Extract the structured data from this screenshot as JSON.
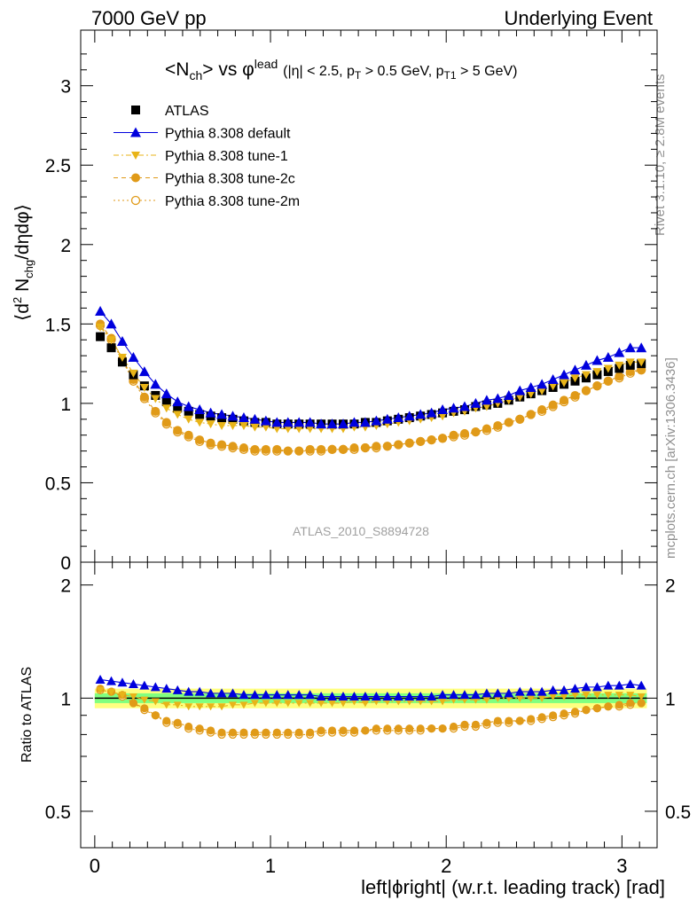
{
  "header": {
    "left": "7000 GeV pp",
    "right": "Underlying Event"
  },
  "side_labels": {
    "rivet": "Rivet 3.1.10, ≥ 2.8M events",
    "mcplots": "mcplots.cern.ch [arXiv:1306.3436]"
  },
  "colors": {
    "atlas": "#000000",
    "default": "#0000dd",
    "tune1": "#e8b418",
    "tune2c": "#e09a18",
    "tune2m": "#e09a18",
    "band_yellow": "#ffff80",
    "band_green": "#80ff80"
  },
  "chart_data": {
    "type": "scatter",
    "title_main": "<N",
    "title_sub": "ch",
    "title_vs": "> vs φ",
    "title_sup": "lead",
    "title_cuts": "(|η| < 2.5, p",
    "title_T": "T",
    "title_cuts2": " > 0.5 GeV, p",
    "title_T1": "T1",
    "title_cuts3": " > 5 GeV)",
    "ylabel": "⟨d² N_chg/dηdφ⟩",
    "ylabel_parts": {
      "pre": "⟨d",
      "sup2": "2",
      "mid": " N",
      "sub": "chg",
      "post": "/dηdφ⟩"
    },
    "ratio_ylabel": "Ratio to ATLAS",
    "xlabel": "left|ϕright| (w.r.t. leading track) [rad]",
    "analysis_id": "ATLAS_2010_S8894728",
    "xlim": [
      -0.08,
      3.2
    ],
    "ylim": [
      0,
      3.35
    ],
    "ratio_ylim": [
      0.4,
      2.3
    ],
    "x_ticks": [
      "0",
      "1",
      "2",
      "3"
    ],
    "y_ticks": [
      "0",
      "0.5",
      "1",
      "1.5",
      "2",
      "2.5",
      "3"
    ],
    "ratio_ticks": [
      "0.5",
      "1",
      "2"
    ],
    "legend_placement": "top-left",
    "x": [
      0.0314,
      0.0942,
      0.157,
      0.2199,
      0.2827,
      0.3456,
      0.4084,
      0.4712,
      0.5341,
      0.5969,
      0.6597,
      0.7226,
      0.7854,
      0.8482,
      0.9111,
      0.9739,
      1.0367,
      1.0996,
      1.1624,
      1.2252,
      1.2881,
      1.3509,
      1.4137,
      1.4766,
      1.5394,
      1.6022,
      1.6651,
      1.7279,
      1.7907,
      1.8536,
      1.9164,
      1.9792,
      2.0421,
      2.1049,
      2.1677,
      2.2306,
      2.2934,
      2.3562,
      2.4191,
      2.4819,
      2.5447,
      2.6076,
      2.6704,
      2.7332,
      2.7961,
      2.8589,
      2.9217,
      2.9846,
      3.0474,
      3.1102
    ],
    "series": [
      {
        "name": "ATLAS",
        "marker": "square",
        "values": [
          1.42,
          1.35,
          1.26,
          1.18,
          1.11,
          1.05,
          1.01,
          0.97,
          0.95,
          0.93,
          0.92,
          0.91,
          0.9,
          0.89,
          0.88,
          0.88,
          0.87,
          0.87,
          0.87,
          0.87,
          0.87,
          0.87,
          0.87,
          0.87,
          0.88,
          0.88,
          0.89,
          0.9,
          0.91,
          0.92,
          0.93,
          0.94,
          0.95,
          0.96,
          0.98,
          0.99,
          1.0,
          1.02,
          1.04,
          1.06,
          1.08,
          1.1,
          1.12,
          1.14,
          1.16,
          1.18,
          1.2,
          1.22,
          1.24,
          1.25
        ],
        "ratio": [
          1,
          1,
          1,
          1,
          1,
          1,
          1,
          1,
          1,
          1,
          1,
          1,
          1,
          1,
          1,
          1,
          1,
          1,
          1,
          1,
          1,
          1,
          1,
          1,
          1,
          1,
          1,
          1,
          1,
          1,
          1,
          1,
          1,
          1,
          1,
          1,
          1,
          1,
          1,
          1,
          1,
          1,
          1,
          1,
          1,
          1,
          1,
          1,
          1,
          1
        ]
      },
      {
        "name": "Pythia 8.308 default",
        "marker": "triangle-up",
        "line": "solid",
        "values": [
          1.58,
          1.5,
          1.39,
          1.29,
          1.2,
          1.12,
          1.06,
          1.01,
          0.98,
          0.96,
          0.94,
          0.93,
          0.92,
          0.91,
          0.9,
          0.89,
          0.88,
          0.88,
          0.88,
          0.88,
          0.87,
          0.87,
          0.87,
          0.88,
          0.88,
          0.89,
          0.9,
          0.91,
          0.92,
          0.93,
          0.94,
          0.96,
          0.97,
          0.98,
          1.0,
          1.02,
          1.03,
          1.05,
          1.08,
          1.1,
          1.12,
          1.15,
          1.18,
          1.21,
          1.24,
          1.27,
          1.29,
          1.32,
          1.35,
          1.35
        ],
        "ratio": [
          1.12,
          1.11,
          1.1,
          1.09,
          1.08,
          1.07,
          1.06,
          1.05,
          1.04,
          1.04,
          1.03,
          1.03,
          1.03,
          1.02,
          1.02,
          1.02,
          1.02,
          1.02,
          1.02,
          1.02,
          1.01,
          1.01,
          1.01,
          1.01,
          1.01,
          1.01,
          1.01,
          1.01,
          1.01,
          1.01,
          1.01,
          1.02,
          1.02,
          1.02,
          1.02,
          1.03,
          1.03,
          1.03,
          1.04,
          1.04,
          1.04,
          1.05,
          1.05,
          1.06,
          1.07,
          1.07,
          1.08,
          1.08,
          1.09,
          1.08
        ]
      },
      {
        "name": "Pythia 8.308 tune-1",
        "marker": "triangle-down",
        "line": "dashdot",
        "values": [
          1.48,
          1.4,
          1.29,
          1.19,
          1.1,
          1.03,
          0.97,
          0.93,
          0.9,
          0.88,
          0.87,
          0.86,
          0.86,
          0.86,
          0.85,
          0.85,
          0.84,
          0.84,
          0.84,
          0.84,
          0.84,
          0.84,
          0.84,
          0.85,
          0.85,
          0.86,
          0.87,
          0.88,
          0.89,
          0.9,
          0.91,
          0.92,
          0.94,
          0.95,
          0.97,
          0.98,
          1.0,
          1.02,
          1.04,
          1.06,
          1.08,
          1.11,
          1.13,
          1.16,
          1.18,
          1.2,
          1.22,
          1.24,
          1.26,
          1.26
        ],
        "ratio": [
          1.05,
          1.04,
          1.02,
          1.01,
          0.99,
          0.98,
          0.96,
          0.96,
          0.95,
          0.95,
          0.95,
          0.95,
          0.96,
          0.96,
          0.97,
          0.97,
          0.97,
          0.97,
          0.97,
          0.97,
          0.97,
          0.97,
          0.97,
          0.98,
          0.97,
          0.98,
          0.98,
          0.98,
          0.98,
          0.98,
          0.98,
          0.98,
          0.99,
          0.99,
          0.99,
          0.99,
          1.0,
          1.0,
          1.0,
          1.0,
          1.0,
          1.01,
          1.01,
          1.02,
          1.02,
          1.02,
          1.02,
          1.02,
          1.02,
          1.01
        ]
      },
      {
        "name": "Pythia 8.308 tune-2c",
        "marker": "circle",
        "line": "dashed",
        "values": [
          1.5,
          1.41,
          1.28,
          1.15,
          1.04,
          0.95,
          0.88,
          0.83,
          0.8,
          0.77,
          0.75,
          0.74,
          0.73,
          0.72,
          0.71,
          0.71,
          0.71,
          0.7,
          0.7,
          0.71,
          0.71,
          0.71,
          0.71,
          0.72,
          0.72,
          0.73,
          0.73,
          0.74,
          0.75,
          0.76,
          0.77,
          0.78,
          0.8,
          0.81,
          0.82,
          0.84,
          0.86,
          0.88,
          0.9,
          0.93,
          0.96,
          0.99,
          1.02,
          1.05,
          1.08,
          1.11,
          1.14,
          1.17,
          1.2,
          1.21
        ],
        "ratio": [
          1.06,
          1.04,
          1.02,
          0.97,
          0.94,
          0.9,
          0.87,
          0.86,
          0.84,
          0.83,
          0.82,
          0.81,
          0.81,
          0.81,
          0.81,
          0.81,
          0.81,
          0.81,
          0.81,
          0.81,
          0.82,
          0.82,
          0.82,
          0.82,
          0.82,
          0.83,
          0.83,
          0.83,
          0.83,
          0.83,
          0.83,
          0.83,
          0.84,
          0.85,
          0.85,
          0.86,
          0.87,
          0.87,
          0.87,
          0.88,
          0.89,
          0.9,
          0.91,
          0.92,
          0.93,
          0.94,
          0.95,
          0.96,
          0.97,
          0.97
        ]
      },
      {
        "name": "Pythia 8.308 tune-2m",
        "marker": "open-circle",
        "line": "dotted",
        "values": [
          1.49,
          1.4,
          1.27,
          1.14,
          1.03,
          0.94,
          0.87,
          0.82,
          0.79,
          0.76,
          0.74,
          0.73,
          0.72,
          0.71,
          0.7,
          0.7,
          0.7,
          0.7,
          0.7,
          0.7,
          0.7,
          0.71,
          0.71,
          0.71,
          0.72,
          0.72,
          0.73,
          0.74,
          0.75,
          0.76,
          0.77,
          0.78,
          0.79,
          0.8,
          0.82,
          0.83,
          0.85,
          0.88,
          0.9,
          0.93,
          0.95,
          0.98,
          1.01,
          1.04,
          1.08,
          1.11,
          1.14,
          1.16,
          1.19,
          1.21
        ],
        "ratio": [
          1.05,
          1.04,
          1.01,
          0.97,
          0.93,
          0.9,
          0.86,
          0.85,
          0.83,
          0.82,
          0.81,
          0.8,
          0.8,
          0.8,
          0.8,
          0.8,
          0.8,
          0.8,
          0.8,
          0.8,
          0.81,
          0.81,
          0.81,
          0.81,
          0.82,
          0.82,
          0.82,
          0.82,
          0.82,
          0.82,
          0.83,
          0.83,
          0.83,
          0.84,
          0.84,
          0.85,
          0.86,
          0.86,
          0.87,
          0.87,
          0.88,
          0.89,
          0.9,
          0.91,
          0.93,
          0.94,
          0.95,
          0.95,
          0.96,
          0.97
        ]
      }
    ],
    "ratio_bands": {
      "yellow": [
        0.94,
        1.06
      ],
      "green": [
        0.97,
        1.03
      ]
    }
  }
}
